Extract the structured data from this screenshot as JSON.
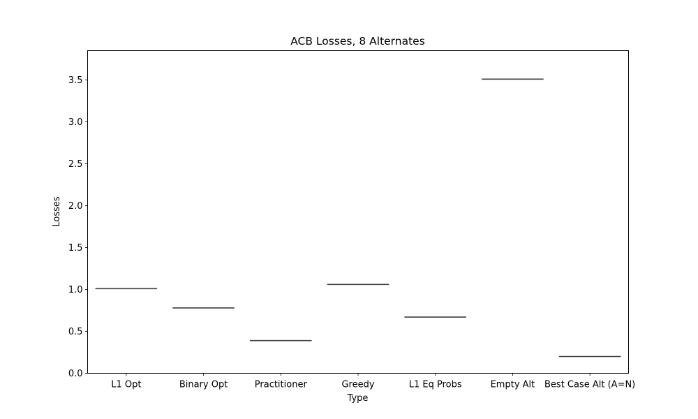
{
  "chart_data": {
    "type": "box",
    "title": "ACB Losses, 8 Alternates",
    "xlabel": "Type",
    "ylabel": "Losses",
    "categories": [
      "L1 Opt",
      "Binary Opt",
      "Practitioner",
      "Greedy",
      "L1 Eq Probs",
      "Empty Alt",
      "Best Case Alt (A=N)"
    ],
    "values": [
      1.01,
      0.78,
      0.39,
      1.06,
      0.67,
      3.51,
      0.2
    ],
    "ylim": [
      0.0,
      3.85
    ],
    "yticks": [
      0.0,
      0.5,
      1.0,
      1.5,
      2.0,
      2.5,
      3.0,
      3.5
    ],
    "ytick_labels": [
      "0.0",
      "0.5",
      "1.0",
      "1.5",
      "2.0",
      "2.5",
      "3.0",
      "3.5"
    ],
    "grid": false,
    "line_color": "#3f3f3f"
  }
}
